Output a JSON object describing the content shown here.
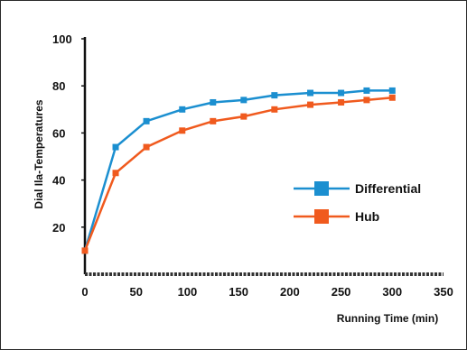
{
  "chart_data": {
    "type": "line",
    "title": "",
    "xlabel": "Running Time (min)",
    "ylabel": "Dial Ila-Temperatures",
    "xlim": [
      0,
      350
    ],
    "ylim": [
      0,
      100
    ],
    "x_ticks": [
      0,
      50,
      100,
      150,
      200,
      250,
      300,
      350
    ],
    "y_ticks": [
      20,
      40,
      60,
      80,
      100
    ],
    "grid": false,
    "legend_position": "right",
    "series": [
      {
        "name": "Differential",
        "color": "#1b8fd0",
        "marker": "square",
        "x": [
          0,
          30,
          60,
          95,
          125,
          155,
          185,
          220,
          250,
          275,
          300
        ],
        "y": [
          10,
          54,
          65,
          70,
          73,
          74,
          76,
          77,
          77,
          78,
          78
        ]
      },
      {
        "name": "Hub",
        "color": "#f05a1e",
        "marker": "square",
        "x": [
          0,
          30,
          60,
          95,
          125,
          155,
          185,
          220,
          250,
          275,
          300
        ],
        "y": [
          10,
          43,
          54,
          61,
          65,
          67,
          70,
          72,
          73,
          74,
          75
        ]
      }
    ]
  }
}
